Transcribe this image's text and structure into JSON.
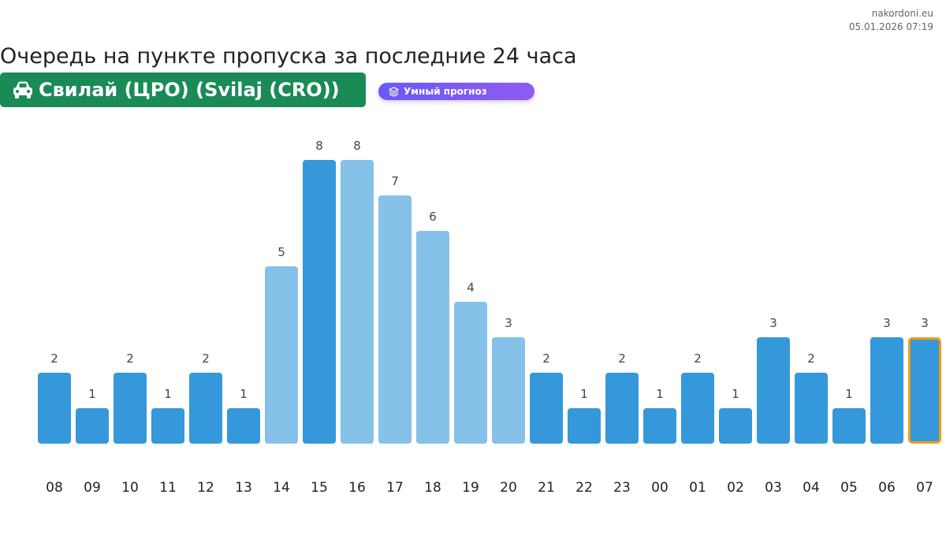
{
  "site": {
    "name": "nakordoni.eu",
    "timestamp": "05.01.2026 07:19"
  },
  "header": {
    "title": "Очередь на пункте пропуска за последние 24 часа",
    "location": "Свилай (ЦРО) (Svilaj (CRO))",
    "location_icon": "car-icon",
    "forecast_label": "Умный прогноз",
    "forecast_icon": "layers-icon"
  },
  "colors": {
    "location_bg": "#1a8a57",
    "bar_dark": "#3598db",
    "bar_light": "#85c1e9",
    "current_outline": "#f39c12"
  },
  "chart_data": {
    "type": "bar",
    "title": "",
    "xlabel": "",
    "ylabel": "",
    "categories": [
      "08",
      "09",
      "10",
      "11",
      "12",
      "13",
      "14",
      "15",
      "16",
      "17",
      "18",
      "19",
      "20",
      "21",
      "22",
      "23",
      "00",
      "01",
      "02",
      "03",
      "04",
      "05",
      "06",
      "07"
    ],
    "values": [
      2,
      1,
      2,
      1,
      2,
      1,
      5,
      8,
      8,
      7,
      6,
      4,
      3,
      2,
      1,
      2,
      1,
      2,
      1,
      3,
      2,
      1,
      3,
      3
    ],
    "shade": [
      "dark",
      "dark",
      "dark",
      "dark",
      "dark",
      "dark",
      "light",
      "dark",
      "light",
      "light",
      "light",
      "light",
      "light",
      "dark",
      "dark",
      "dark",
      "dark",
      "dark",
      "dark",
      "dark",
      "dark",
      "dark",
      "dark",
      "dark"
    ],
    "highlighted_category": "07",
    "ylim": [
      0,
      8
    ],
    "grid": false,
    "legend": "none"
  }
}
